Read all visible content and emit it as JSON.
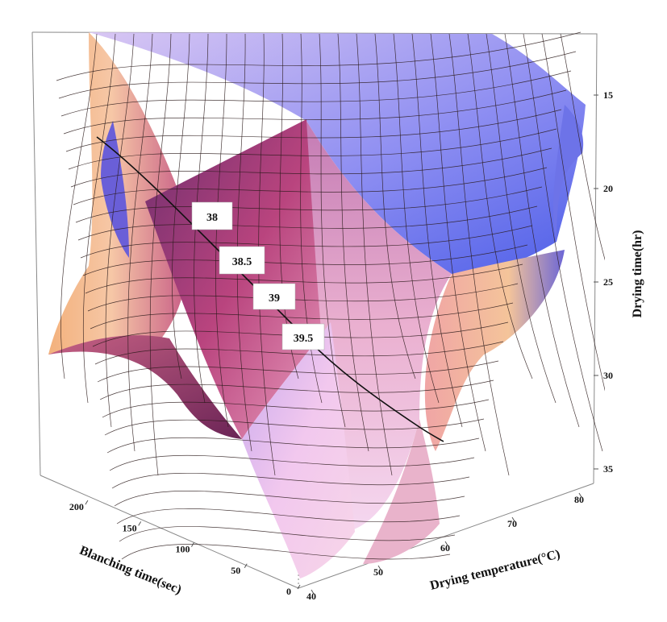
{
  "chart_data": {
    "type": "surface3d",
    "title": "",
    "xlabel": "Blanching time(sec)",
    "ylabel": "Drying temperature(°C)",
    "zlabel": "Drying time(hr)",
    "x_ticks": [
      "0",
      "50",
      "100",
      "150",
      "200"
    ],
    "y_ticks": [
      "40",
      "50",
      "60",
      "70",
      "80"
    ],
    "z_ticks": [
      "15",
      "20",
      "25",
      "30",
      "35"
    ],
    "xlim": [
      0,
      225
    ],
    "ylim": [
      40,
      80
    ],
    "zlim": [
      13,
      36
    ],
    "contour_labels": [
      "38",
      "38.5",
      "39",
      "39.5"
    ],
    "colors": {
      "high": "#5e66ee",
      "mid": "#f2c4e6",
      "low": "#8b2a5f",
      "warm": "#f4b47f"
    }
  }
}
